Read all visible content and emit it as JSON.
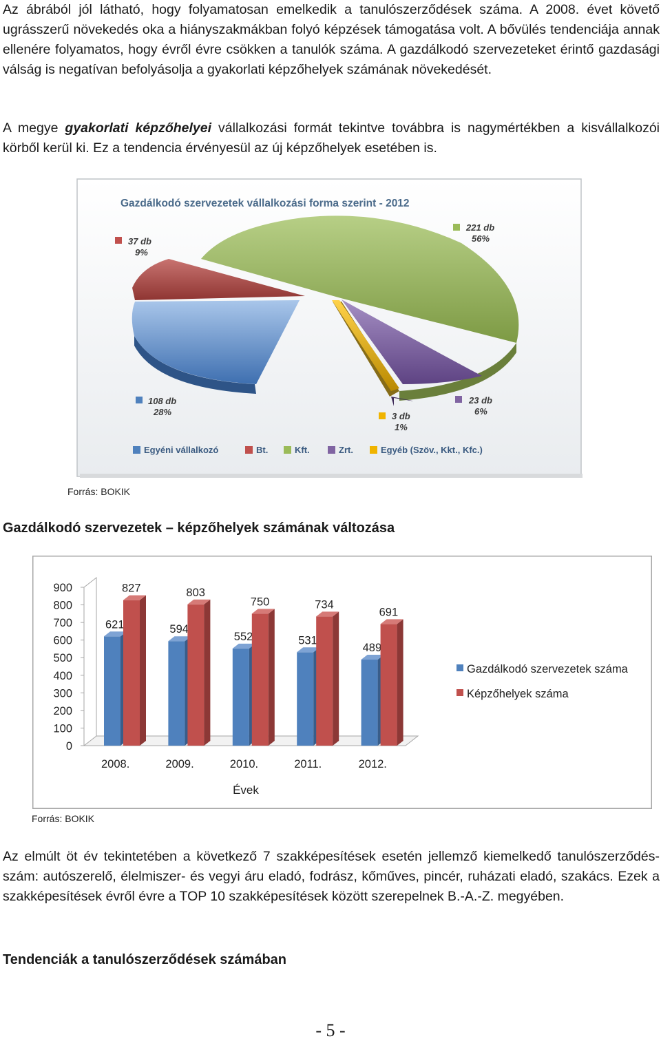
{
  "paragraphs": {
    "p1": "Az ábrából jól látható, hogy folyamatosan emelkedik a tanulószerződések száma. A 2008. évet követő ugrásszerű növekedés oka a hiányszakmákban folyó képzések támogatása volt. A bővülés tendenciája annak ellenére folyamatos, hogy évről évre csökken a tanulók száma. A gazdálkodó szervezeteket érintő gazdasági válság is negatívan befolyásolja a gyakorlati képzőhelyek számának növekedését.",
    "p2_before": "A megye ",
    "p2_emph": "gyakorlati képzőhelyei",
    "p2_after": " vállalkozási formát tekintve továbbra is nagymértékben a kisvállalkozói körből kerül ki. Ez a tendencia érvényesül az új képzőhelyek esetében is.",
    "p3": "Az elmúlt öt év tekintetében a következő 7 szakképesítések esetén jellemző kiemelkedő tanulószerződés-szám: autószerelő, élelmiszer- és vegyi áru eladó, fodrász, kőműves, pincér, ruházati eladó, szakács. Ezek a szakképesítések évről évre a TOP 10 szakképesítések között szerepelnek B.-A.-Z. megyében."
  },
  "source1": "Forrás: BOKIK",
  "source2": "Forrás: BOKIK",
  "bar_heading": "Gazdálkodó szervezetek – képzőhelyek számának változása",
  "bottom_heading": "Tendenciák a tanulószerződések számában",
  "page_number": "- 5 -",
  "colors": {
    "blue": "#4f81bd",
    "red": "#c0504d",
    "green": "#9bbb59",
    "purple": "#8064a2",
    "gold": "#f0b400",
    "title": "#4a6a8a"
  },
  "chart_data": [
    {
      "type": "pie",
      "title": "Gazdálkodó szervezetek vállalkozási forma szerint - 2012",
      "categories": [
        "Egyéni vállalkozó",
        "Bt.",
        "Kft.",
        "Zrt.",
        "Egyéb (Szöv., Kkt., Kfc.)"
      ],
      "values": [
        108,
        37,
        221,
        23,
        3
      ],
      "percent": [
        28,
        9,
        56,
        6,
        1
      ],
      "data_labels": [
        {
          "count": "108 db",
          "pct": "28%"
        },
        {
          "count": "37 db",
          "pct": "9%"
        },
        {
          "count": "221 db",
          "pct": "56%"
        },
        {
          "count": "23 db",
          "pct": "6%"
        },
        {
          "count": "3 db",
          "pct": "1%"
        }
      ],
      "legend_position": "bottom"
    },
    {
      "type": "bar",
      "title": "Gazdálkodó szervezetek – képzőhelyek számának változása",
      "categories": [
        "2008.",
        "2009.",
        "2010.",
        "2011.",
        "2012."
      ],
      "series": [
        {
          "name": "Gazdálkodó szervezetek száma",
          "values": [
            621,
            594,
            552,
            531,
            489
          ]
        },
        {
          "name": "Képzőhelyek száma",
          "values": [
            827,
            803,
            750,
            734,
            691
          ]
        }
      ],
      "xlabel": "Évek",
      "ylabel": "",
      "ylim": [
        0,
        900
      ],
      "yticks": [
        "900",
        "800",
        "700",
        "600",
        "500",
        "400",
        "300",
        "200",
        "100",
        "0"
      ],
      "legend_position": "right"
    }
  ]
}
